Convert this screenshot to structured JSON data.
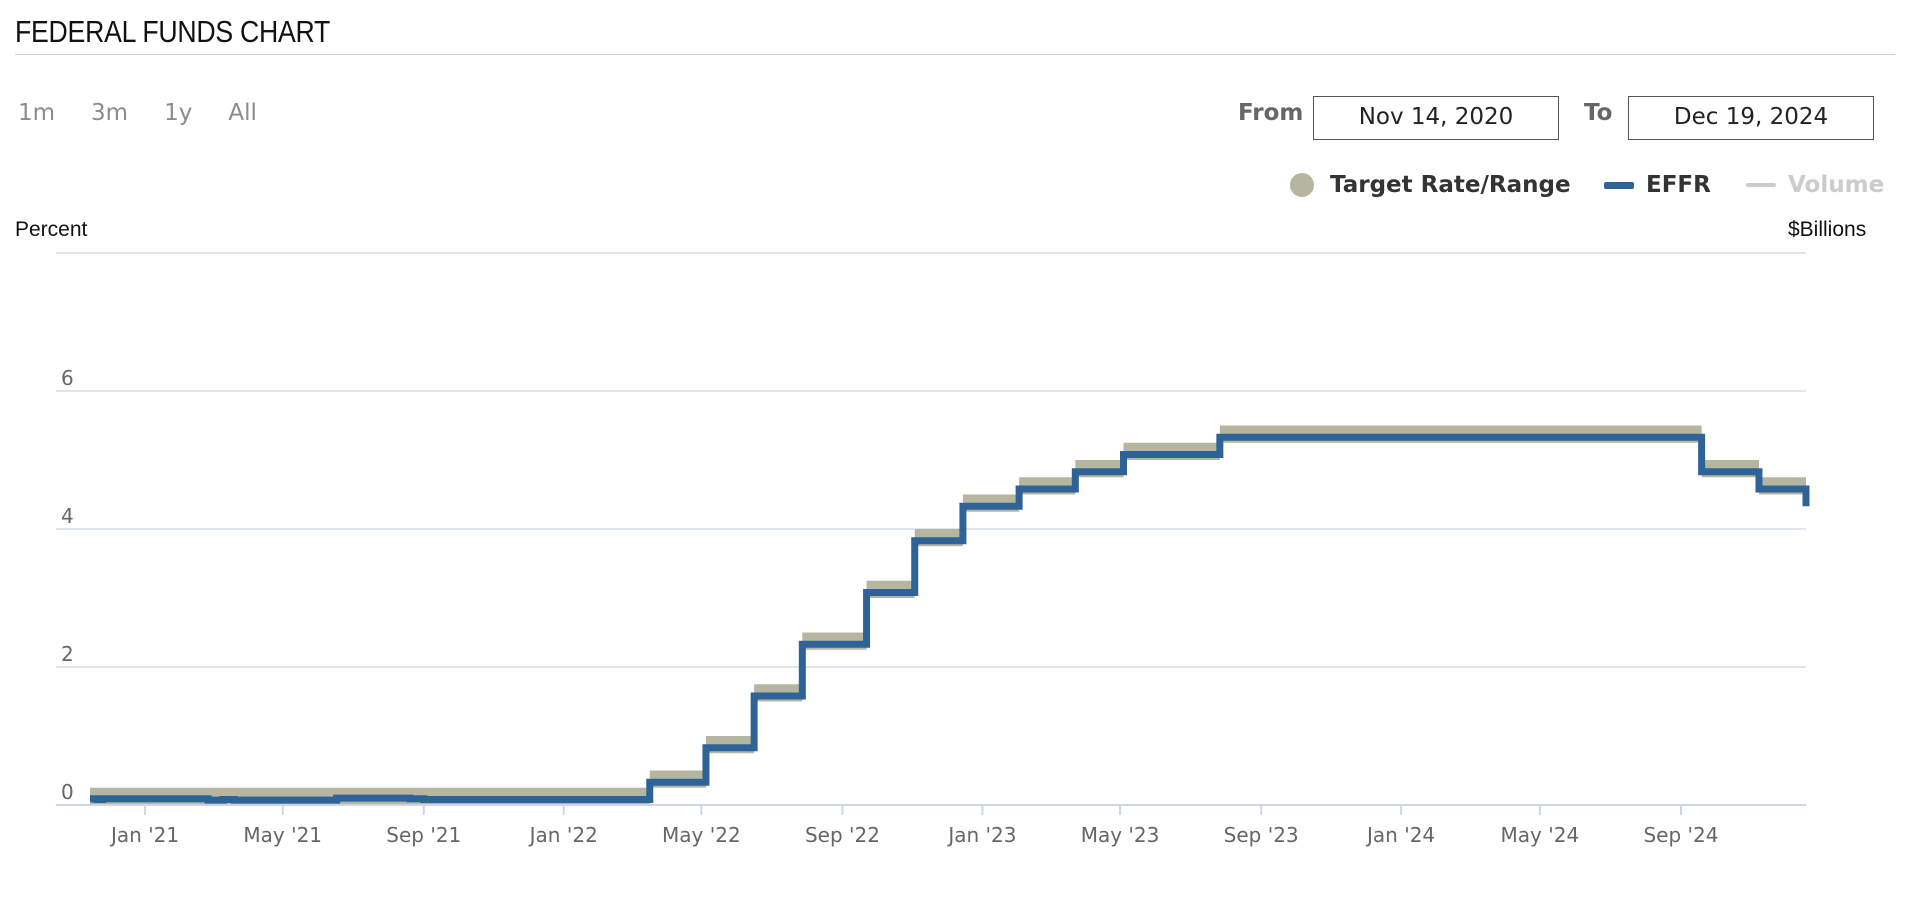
{
  "page": {
    "title": "FEDERAL FUNDS CHART"
  },
  "controls": {
    "range_buttons": [
      "1m",
      "3m",
      "1y",
      "All"
    ],
    "from_label": "From",
    "from_value": "Nov 14, 2020",
    "to_label": "To",
    "to_value": "Dec 19, 2024"
  },
  "legend": {
    "target": {
      "label": "Target Rate/Range",
      "color": "#b5b5a0",
      "icon": "circle"
    },
    "effr": {
      "label": "EFFR",
      "color": "#2d6397",
      "icon": "line"
    },
    "volume": {
      "label": "Volume",
      "color": "#cccccc",
      "icon": "line",
      "disabled": true
    }
  },
  "axes": {
    "left_title": "Percent",
    "right_title": "$Billions"
  },
  "chart_data": {
    "type": "line",
    "title": "FEDERAL FUNDS CHART",
    "xlabel": "",
    "ylabel": "Percent",
    "y2label": "$Billions",
    "ylim": [
      0,
      8
    ],
    "yticks": [
      0,
      2,
      4,
      6
    ],
    "xlim": [
      "2020-11-14",
      "2024-12-19"
    ],
    "grid": true,
    "legend_position": "top-right",
    "x_ticks": [
      {
        "date": "2021-01-01",
        "label": "Jan '21"
      },
      {
        "date": "2021-05-01",
        "label": "May '21"
      },
      {
        "date": "2021-09-01",
        "label": "Sep '21"
      },
      {
        "date": "2022-01-01",
        "label": "Jan '22"
      },
      {
        "date": "2022-05-01",
        "label": "May '22"
      },
      {
        "date": "2022-09-01",
        "label": "Sep '22"
      },
      {
        "date": "2023-01-01",
        "label": "Jan '23"
      },
      {
        "date": "2023-05-01",
        "label": "May '23"
      },
      {
        "date": "2023-09-01",
        "label": "Sep '23"
      },
      {
        "date": "2024-01-01",
        "label": "Jan '24"
      },
      {
        "date": "2024-05-01",
        "label": "May '24"
      },
      {
        "date": "2024-09-01",
        "label": "Sep '24"
      }
    ],
    "series": [
      {
        "name": "Target Rate/Range",
        "kind": "band",
        "color": "#b5b5a0",
        "points": [
          {
            "date": "2020-11-14",
            "lower": 0.0,
            "upper": 0.25
          },
          {
            "date": "2022-03-17",
            "lower": 0.25,
            "upper": 0.5
          },
          {
            "date": "2022-05-05",
            "lower": 0.75,
            "upper": 1.0
          },
          {
            "date": "2022-06-16",
            "lower": 1.5,
            "upper": 1.75
          },
          {
            "date": "2022-07-28",
            "lower": 2.25,
            "upper": 2.5
          },
          {
            "date": "2022-09-22",
            "lower": 3.0,
            "upper": 3.25
          },
          {
            "date": "2022-11-03",
            "lower": 3.75,
            "upper": 4.0
          },
          {
            "date": "2022-12-15",
            "lower": 4.25,
            "upper": 4.5
          },
          {
            "date": "2023-02-02",
            "lower": 4.5,
            "upper": 4.75
          },
          {
            "date": "2023-03-23",
            "lower": 4.75,
            "upper": 5.0
          },
          {
            "date": "2023-05-04",
            "lower": 5.0,
            "upper": 5.25
          },
          {
            "date": "2023-07-27",
            "lower": 5.25,
            "upper": 5.5
          },
          {
            "date": "2024-09-19",
            "lower": 4.75,
            "upper": 5.0
          },
          {
            "date": "2024-11-08",
            "lower": 4.5,
            "upper": 4.75
          },
          {
            "date": "2024-12-19",
            "lower": 4.25,
            "upper": 4.5
          }
        ]
      },
      {
        "name": "EFFR",
        "kind": "step",
        "color": "#2d6397",
        "points": [
          {
            "date": "2020-11-14",
            "value": 0.09
          },
          {
            "date": "2020-11-20",
            "value": 0.08
          },
          {
            "date": "2020-11-25",
            "value": 0.09
          },
          {
            "date": "2021-02-25",
            "value": 0.07
          },
          {
            "date": "2021-03-10",
            "value": 0.08
          },
          {
            "date": "2021-03-20",
            "value": 0.07
          },
          {
            "date": "2021-06-17",
            "value": 0.1
          },
          {
            "date": "2021-08-20",
            "value": 0.09
          },
          {
            "date": "2021-09-01",
            "value": 0.08
          },
          {
            "date": "2022-03-17",
            "value": 0.33
          },
          {
            "date": "2022-05-05",
            "value": 0.83
          },
          {
            "date": "2022-06-16",
            "value": 1.58
          },
          {
            "date": "2022-07-28",
            "value": 2.33
          },
          {
            "date": "2022-09-22",
            "value": 3.08
          },
          {
            "date": "2022-11-03",
            "value": 3.83
          },
          {
            "date": "2022-12-15",
            "value": 4.33
          },
          {
            "date": "2023-02-02",
            "value": 4.58
          },
          {
            "date": "2023-03-23",
            "value": 4.83
          },
          {
            "date": "2023-05-04",
            "value": 5.08
          },
          {
            "date": "2023-07-27",
            "value": 5.33
          },
          {
            "date": "2024-09-19",
            "value": 4.83
          },
          {
            "date": "2024-11-08",
            "value": 4.58
          },
          {
            "date": "2024-12-19",
            "value": 4.33
          }
        ]
      }
    ]
  }
}
